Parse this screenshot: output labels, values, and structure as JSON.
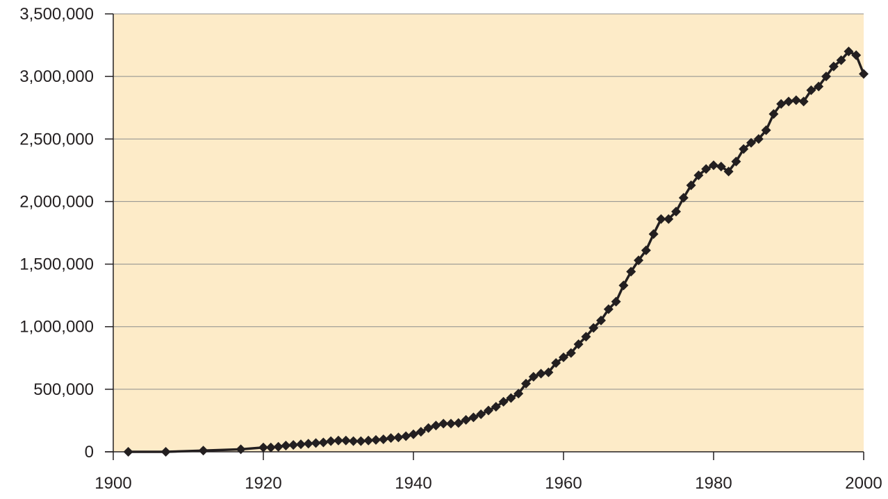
{
  "chart_data": {
    "type": "line",
    "title": "",
    "xlabel": "",
    "ylabel": "",
    "xlim": [
      1900,
      2000
    ],
    "ylim": [
      0,
      3500000
    ],
    "x_ticks": [
      "1900",
      "1920",
      "1940",
      "1960",
      "1980",
      "2000"
    ],
    "y_ticks": [
      "0",
      "500,000",
      "1,000,000",
      "1,500,000",
      "2,000,000",
      "2,500,000",
      "3,000,000",
      "3,500,000"
    ],
    "grid": "horizontal",
    "legend": "none",
    "colors": {
      "plot_background": "#fdebc8",
      "line": "#231f20",
      "gridline": "#8c8c8c"
    },
    "series": [
      {
        "marker": "diamond",
        "points": [
          [
            1902,
            0
          ],
          [
            1907,
            0
          ],
          [
            1912,
            10000
          ],
          [
            1917,
            20000
          ],
          [
            1920,
            35000
          ],
          [
            1921,
            35000
          ],
          [
            1922,
            40000
          ],
          [
            1923,
            50000
          ],
          [
            1924,
            55000
          ],
          [
            1925,
            60000
          ],
          [
            1926,
            65000
          ],
          [
            1927,
            70000
          ],
          [
            1928,
            75000
          ],
          [
            1929,
            85000
          ],
          [
            1930,
            90000
          ],
          [
            1931,
            90000
          ],
          [
            1932,
            85000
          ],
          [
            1933,
            85000
          ],
          [
            1934,
            90000
          ],
          [
            1935,
            95000
          ],
          [
            1936,
            100000
          ],
          [
            1937,
            110000
          ],
          [
            1938,
            115000
          ],
          [
            1939,
            125000
          ],
          [
            1940,
            140000
          ],
          [
            1941,
            160000
          ],
          [
            1942,
            190000
          ],
          [
            1943,
            210000
          ],
          [
            1944,
            225000
          ],
          [
            1945,
            225000
          ],
          [
            1946,
            230000
          ],
          [
            1947,
            255000
          ],
          [
            1948,
            275000
          ],
          [
            1949,
            300000
          ],
          [
            1950,
            330000
          ],
          [
            1951,
            360000
          ],
          [
            1952,
            400000
          ],
          [
            1953,
            430000
          ],
          [
            1954,
            465000
          ],
          [
            1955,
            545000
          ],
          [
            1956,
            600000
          ],
          [
            1957,
            625000
          ],
          [
            1958,
            635000
          ],
          [
            1959,
            710000
          ],
          [
            1960,
            755000
          ],
          [
            1961,
            790000
          ],
          [
            1962,
            860000
          ],
          [
            1963,
            920000
          ],
          [
            1964,
            990000
          ],
          [
            1965,
            1050000
          ],
          [
            1966,
            1140000
          ],
          [
            1967,
            1200000
          ],
          [
            1968,
            1330000
          ],
          [
            1969,
            1440000
          ],
          [
            1970,
            1530000
          ],
          [
            1971,
            1610000
          ],
          [
            1972,
            1740000
          ],
          [
            1973,
            1860000
          ],
          [
            1974,
            1860000
          ],
          [
            1975,
            1920000
          ],
          [
            1976,
            2030000
          ],
          [
            1977,
            2130000
          ],
          [
            1978,
            2210000
          ],
          [
            1979,
            2260000
          ],
          [
            1980,
            2290000
          ],
          [
            1981,
            2280000
          ],
          [
            1982,
            2240000
          ],
          [
            1983,
            2320000
          ],
          [
            1984,
            2420000
          ],
          [
            1985,
            2470000
          ],
          [
            1986,
            2500000
          ],
          [
            1987,
            2570000
          ],
          [
            1988,
            2700000
          ],
          [
            1989,
            2780000
          ],
          [
            1990,
            2800000
          ],
          [
            1991,
            2810000
          ],
          [
            1992,
            2800000
          ],
          [
            1993,
            2890000
          ],
          [
            1994,
            2920000
          ],
          [
            1995,
            3000000
          ],
          [
            1996,
            3080000
          ],
          [
            1997,
            3130000
          ],
          [
            1998,
            3200000
          ],
          [
            1999,
            3170000
          ],
          [
            2000,
            3020000
          ]
        ]
      }
    ]
  }
}
